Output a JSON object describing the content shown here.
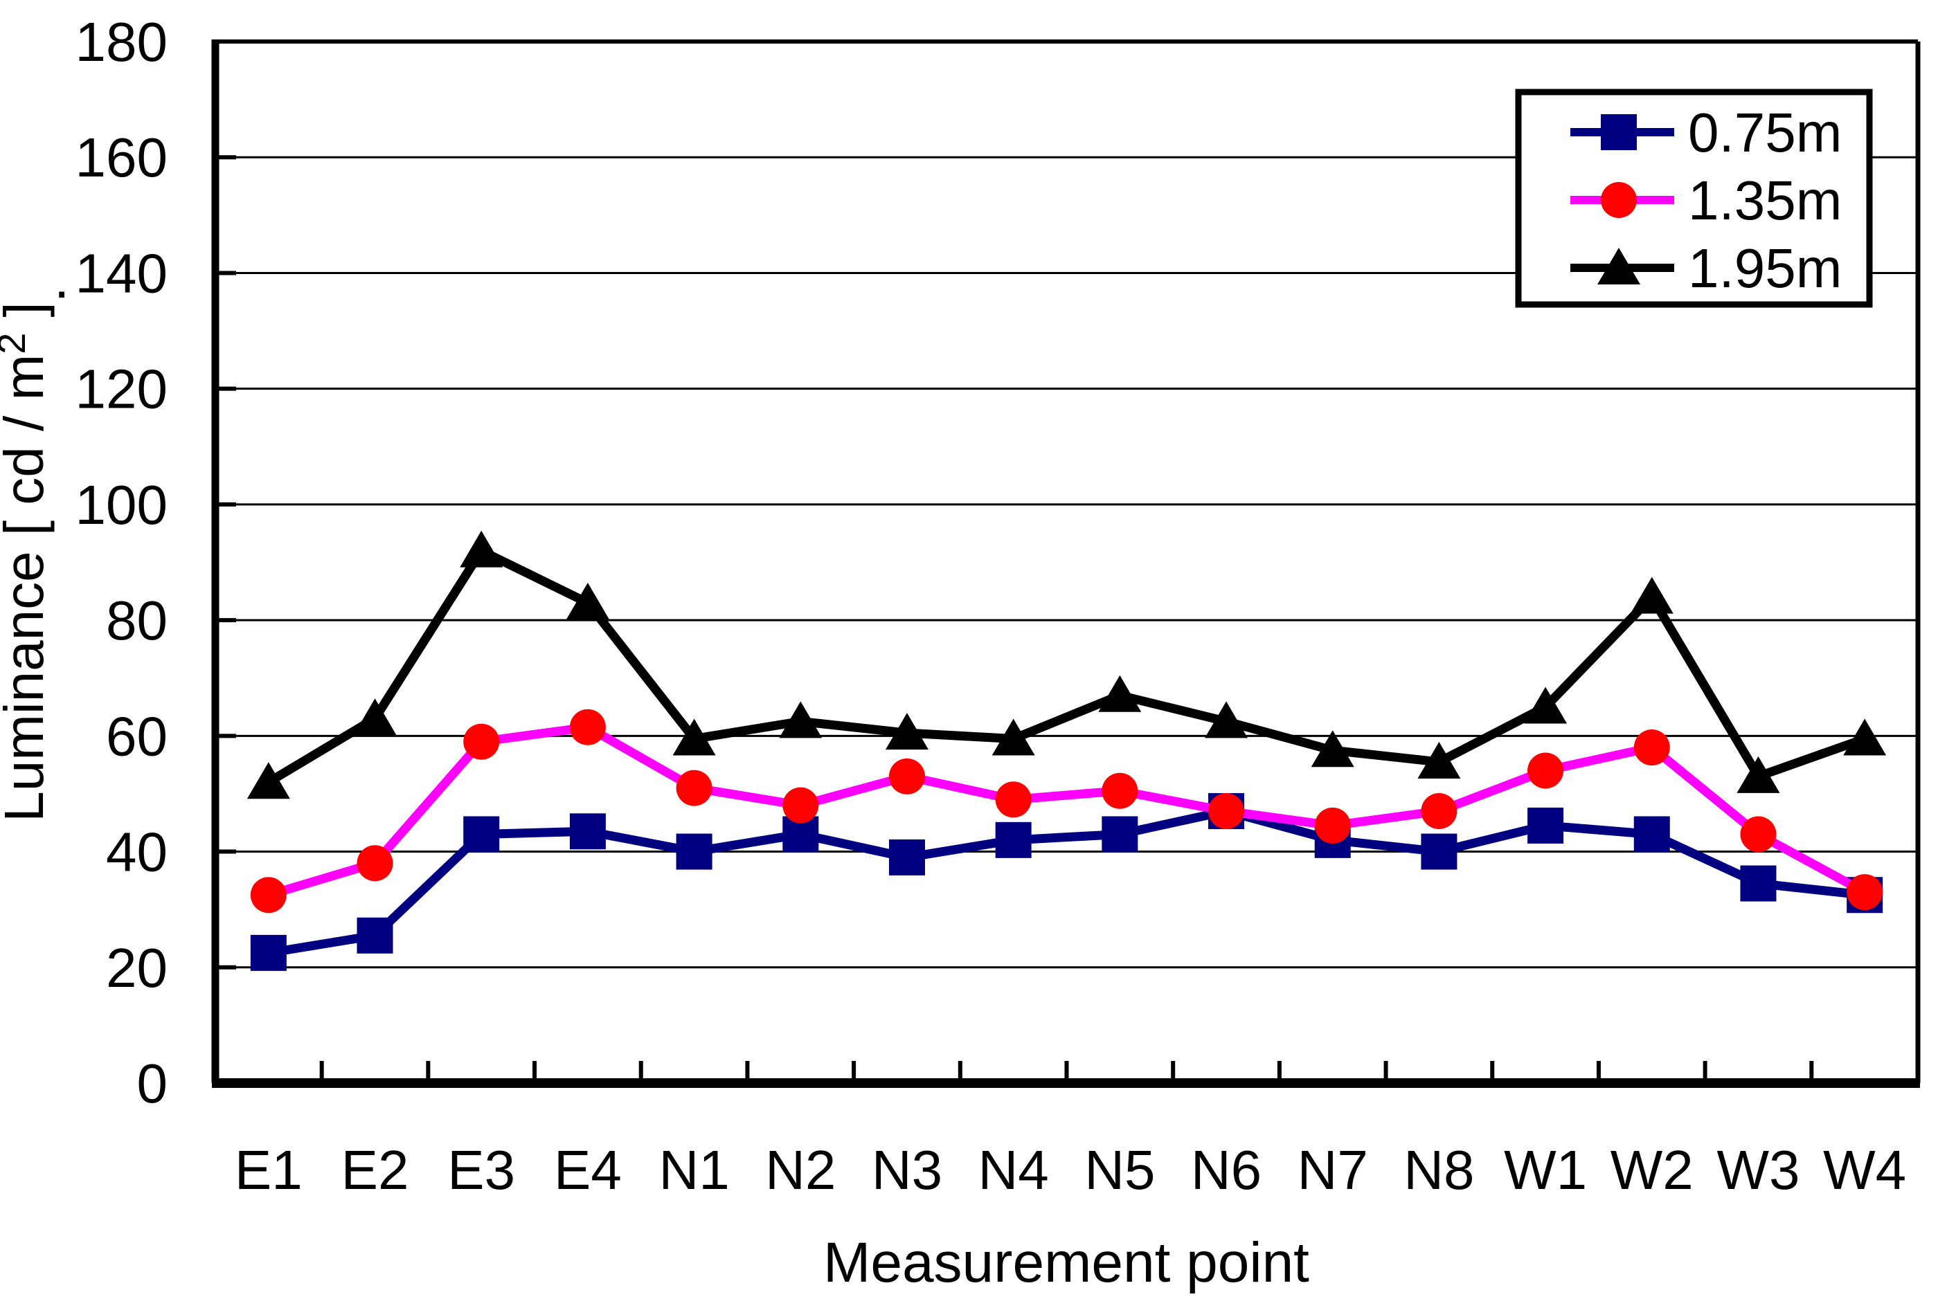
{
  "chart_data": {
    "type": "line",
    "title": "",
    "xlabel": "Measurement point",
    "ylabel_prefix": "Luminance [ cd / m",
    "ylabel_sup": "2",
    "ylabel_suffix": " ]",
    "categories": [
      "E1",
      "E2",
      "E3",
      "E4",
      "N1",
      "N2",
      "N3",
      "N4",
      "N5",
      "N6",
      "N7",
      "N8",
      "W1",
      "W2",
      "W3",
      "W4"
    ],
    "y_axis": {
      "min": 0,
      "max": 180,
      "step": 20,
      "tick_labels": [
        "0",
        "20",
        "40",
        "60",
        "80",
        "100",
        "120",
        "140",
        "160",
        "180"
      ]
    },
    "grid": "horizontal",
    "legend_position": "top-right",
    "series": [
      {
        "name": "0.75m",
        "marker": "square",
        "line_color": "#000080",
        "marker_color": "#000080",
        "values": [
          22.5,
          25.5,
          43,
          43.5,
          40,
          43,
          39,
          42,
          43,
          47,
          42,
          40,
          44.5,
          43,
          34.5,
          32.5
        ]
      },
      {
        "name": "1.35m",
        "marker": "circle",
        "line_color": "#FF00FF",
        "marker_color": "#FF0000",
        "values": [
          32.5,
          38,
          59,
          61.5,
          51,
          48,
          53,
          49,
          50.5,
          47,
          44.5,
          47,
          54,
          58,
          43,
          33
        ]
      },
      {
        "name": "1.95m",
        "marker": "triangle",
        "line_color": "#000000",
        "marker_color": "#000000",
        "values": [
          52,
          63,
          92,
          83,
          59.5,
          62.5,
          60.5,
          59.5,
          67,
          62.5,
          57.5,
          55.5,
          65,
          84,
          53,
          59.5
        ]
      }
    ],
    "stray_mark": "."
  }
}
